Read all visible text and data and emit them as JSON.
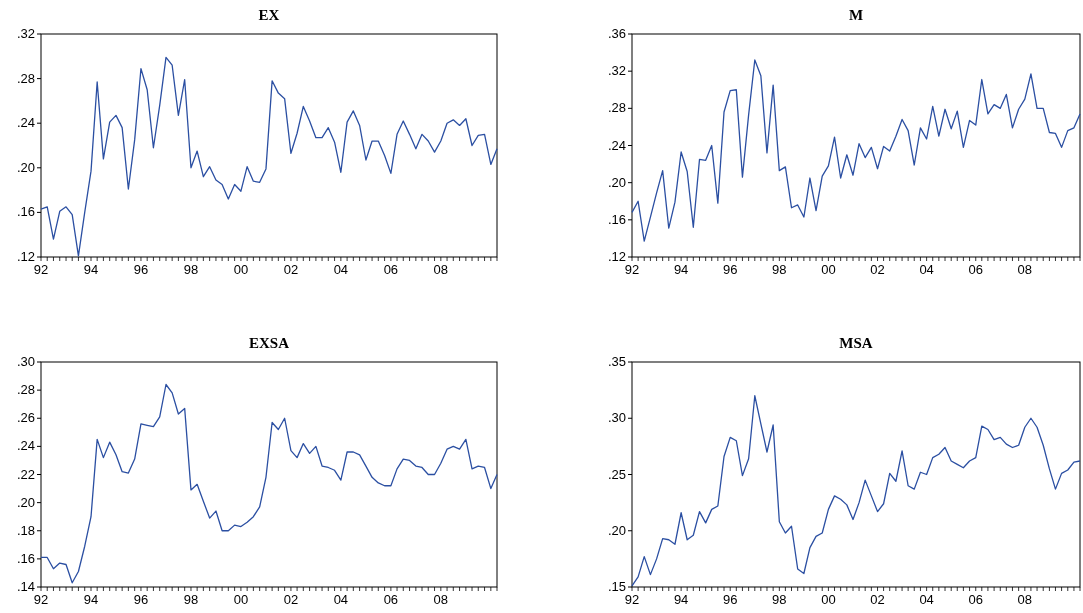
{
  "chart_data": [
    {
      "type": "line",
      "title": "EX",
      "color": "#2b4fa2",
      "xlim": [
        "1992-01",
        "2010-04"
      ],
      "ylim": [
        0.12,
        0.32
      ],
      "yticks": [
        {
          "value": 0.12,
          "label": ".12"
        },
        {
          "value": 0.16,
          "label": ".16"
        },
        {
          "value": 0.2,
          "label": ".20"
        },
        {
          "value": 0.24,
          "label": ".24"
        },
        {
          "value": 0.28,
          "label": ".28"
        },
        {
          "value": 0.32,
          "label": ".32"
        }
      ],
      "xticks": [
        {
          "value": "1992",
          "label": "92"
        },
        {
          "value": "1994",
          "label": "94"
        },
        {
          "value": "1996",
          "label": "96"
        },
        {
          "value": "1998",
          "label": "98"
        },
        {
          "value": "2000",
          "label": "00"
        },
        {
          "value": "2002",
          "label": "02"
        },
        {
          "value": "2004",
          "label": "04"
        },
        {
          "value": "2006",
          "label": "06"
        },
        {
          "value": "2008",
          "label": "08"
        }
      ],
      "x": [
        "1992-01",
        "1992-04",
        "1992-07",
        "1992-10",
        "1993-01",
        "1993-04",
        "1993-07",
        "1993-10",
        "1994-01",
        "1994-04",
        "1994-07",
        "1994-10",
        "1995-01",
        "1995-04",
        "1995-07",
        "1995-10",
        "1996-01",
        "1996-04",
        "1996-07",
        "1996-10",
        "1997-01",
        "1997-04",
        "1997-07",
        "1997-10",
        "1998-01",
        "1998-04",
        "1998-07",
        "1998-10",
        "1999-01",
        "1999-04",
        "1999-07",
        "1999-10",
        "2000-01",
        "2000-04",
        "2000-07",
        "2000-10",
        "2001-01",
        "2001-04",
        "2001-07",
        "2001-10",
        "2002-01",
        "2002-04",
        "2002-07",
        "2002-10",
        "2003-01",
        "2003-04",
        "2003-07",
        "2003-10",
        "2004-01",
        "2004-04",
        "2004-07",
        "2004-10",
        "2005-01",
        "2005-04",
        "2005-07",
        "2005-10",
        "2006-01",
        "2006-04",
        "2006-07",
        "2006-10",
        "2007-01",
        "2007-04",
        "2007-07",
        "2007-10",
        "2008-01",
        "2008-04",
        "2008-07",
        "2008-10",
        "2009-01",
        "2009-04",
        "2009-07",
        "2009-10",
        "2010-01",
        "2010-04"
      ],
      "values": [
        0.163,
        0.165,
        0.136,
        0.161,
        0.165,
        0.158,
        0.121,
        0.16,
        0.197,
        0.277,
        0.208,
        0.241,
        0.247,
        0.236,
        0.181,
        0.225,
        0.289,
        0.27,
        0.218,
        0.256,
        0.299,
        0.292,
        0.247,
        0.279,
        0.2,
        0.215,
        0.192,
        0.201,
        0.189,
        0.185,
        0.172,
        0.185,
        0.179,
        0.201,
        0.188,
        0.187,
        0.199,
        0.278,
        0.267,
        0.262,
        0.213,
        0.231,
        0.255,
        0.242,
        0.227,
        0.227,
        0.236,
        0.223,
        0.196,
        0.241,
        0.251,
        0.238,
        0.207,
        0.224,
        0.224,
        0.211,
        0.195,
        0.23,
        0.242,
        0.23,
        0.217,
        0.23,
        0.224,
        0.214,
        0.224,
        0.24,
        0.243,
        0.238,
        0.244,
        0.22,
        0.229,
        0.23,
        0.203,
        0.217
      ]
    },
    {
      "type": "line",
      "title": "M",
      "color": "#2b4fa2",
      "xlim": [
        "1992-01",
        "2010-04"
      ],
      "ylim": [
        0.12,
        0.36
      ],
      "yticks": [
        {
          "value": 0.12,
          "label": ".12"
        },
        {
          "value": 0.16,
          "label": ".16"
        },
        {
          "value": 0.2,
          "label": ".20"
        },
        {
          "value": 0.24,
          "label": ".24"
        },
        {
          "value": 0.28,
          "label": ".28"
        },
        {
          "value": 0.32,
          "label": ".32"
        },
        {
          "value": 0.36,
          "label": ".36"
        }
      ],
      "xticks": [
        {
          "value": "1992",
          "label": "92"
        },
        {
          "value": "1994",
          "label": "94"
        },
        {
          "value": "1996",
          "label": "96"
        },
        {
          "value": "1998",
          "label": "98"
        },
        {
          "value": "2000",
          "label": "00"
        },
        {
          "value": "2002",
          "label": "02"
        },
        {
          "value": "2004",
          "label": "04"
        },
        {
          "value": "2006",
          "label": "06"
        },
        {
          "value": "2008",
          "label": "08"
        }
      ],
      "x": [
        "1992-01",
        "1992-04",
        "1992-07",
        "1992-10",
        "1993-01",
        "1993-04",
        "1993-07",
        "1993-10",
        "1994-01",
        "1994-04",
        "1994-07",
        "1994-10",
        "1995-01",
        "1995-04",
        "1995-07",
        "1995-10",
        "1996-01",
        "1996-04",
        "1996-07",
        "1996-10",
        "1997-01",
        "1997-04",
        "1997-07",
        "1997-10",
        "1998-01",
        "1998-04",
        "1998-07",
        "1998-10",
        "1999-01",
        "1999-04",
        "1999-07",
        "1999-10",
        "2000-01",
        "2000-04",
        "2000-07",
        "2000-10",
        "2001-01",
        "2001-04",
        "2001-07",
        "2001-10",
        "2002-01",
        "2002-04",
        "2002-07",
        "2002-10",
        "2003-01",
        "2003-04",
        "2003-07",
        "2003-10",
        "2004-01",
        "2004-04",
        "2004-07",
        "2004-10",
        "2005-01",
        "2005-04",
        "2005-07",
        "2005-10",
        "2006-01",
        "2006-04",
        "2006-07",
        "2006-10",
        "2007-01",
        "2007-04",
        "2007-07",
        "2007-10",
        "2008-01",
        "2008-04",
        "2008-07",
        "2008-10",
        "2009-01",
        "2009-04",
        "2009-07",
        "2009-10",
        "2010-01",
        "2010-04"
      ],
      "values": [
        0.168,
        0.18,
        0.137,
        0.163,
        0.189,
        0.213,
        0.151,
        0.179,
        0.233,
        0.212,
        0.152,
        0.225,
        0.224,
        0.24,
        0.178,
        0.276,
        0.299,
        0.3,
        0.206,
        0.273,
        0.332,
        0.315,
        0.232,
        0.305,
        0.213,
        0.217,
        0.173,
        0.176,
        0.163,
        0.205,
        0.17,
        0.207,
        0.218,
        0.249,
        0.205,
        0.23,
        0.208,
        0.242,
        0.227,
        0.238,
        0.215,
        0.239,
        0.234,
        0.25,
        0.268,
        0.256,
        0.219,
        0.259,
        0.247,
        0.282,
        0.25,
        0.279,
        0.258,
        0.277,
        0.238,
        0.267,
        0.262,
        0.311,
        0.274,
        0.284,
        0.28,
        0.295,
        0.259,
        0.279,
        0.29,
        0.317,
        0.28,
        0.28,
        0.254,
        0.253,
        0.238,
        0.256,
        0.259,
        0.274
      ]
    },
    {
      "type": "line",
      "title": "EXSA",
      "color": "#2b4fa2",
      "xlim": [
        "1992-01",
        "2010-04"
      ],
      "ylim": [
        0.14,
        0.3
      ],
      "yticks": [
        {
          "value": 0.14,
          "label": ".14"
        },
        {
          "value": 0.16,
          "label": ".16"
        },
        {
          "value": 0.18,
          "label": ".18"
        },
        {
          "value": 0.2,
          "label": ".20"
        },
        {
          "value": 0.22,
          "label": ".22"
        },
        {
          "value": 0.24,
          "label": ".24"
        },
        {
          "value": 0.26,
          "label": ".26"
        },
        {
          "value": 0.28,
          "label": ".28"
        },
        {
          "value": 0.3,
          "label": ".30"
        }
      ],
      "xticks": [
        {
          "value": "1992",
          "label": "92"
        },
        {
          "value": "1994",
          "label": "94"
        },
        {
          "value": "1996",
          "label": "96"
        },
        {
          "value": "1998",
          "label": "98"
        },
        {
          "value": "2000",
          "label": "00"
        },
        {
          "value": "2002",
          "label": "02"
        },
        {
          "value": "2004",
          "label": "04"
        },
        {
          "value": "2006",
          "label": "06"
        },
        {
          "value": "2008",
          "label": "08"
        }
      ],
      "x": [
        "1992-01",
        "1992-04",
        "1992-07",
        "1992-10",
        "1993-01",
        "1993-04",
        "1993-07",
        "1993-10",
        "1994-01",
        "1994-04",
        "1994-07",
        "1994-10",
        "1995-01",
        "1995-04",
        "1995-07",
        "1995-10",
        "1996-01",
        "1996-04",
        "1996-07",
        "1996-10",
        "1997-01",
        "1997-04",
        "1997-07",
        "1997-10",
        "1998-01",
        "1998-04",
        "1998-07",
        "1998-10",
        "1999-01",
        "1999-04",
        "1999-07",
        "1999-10",
        "2000-01",
        "2000-04",
        "2000-07",
        "2000-10",
        "2001-01",
        "2001-04",
        "2001-07",
        "2001-10",
        "2002-01",
        "2002-04",
        "2002-07",
        "2002-10",
        "2003-01",
        "2003-04",
        "2003-07",
        "2003-10",
        "2004-01",
        "2004-04",
        "2004-07",
        "2004-10",
        "2005-01",
        "2005-04",
        "2005-07",
        "2005-10",
        "2006-01",
        "2006-04",
        "2006-07",
        "2006-10",
        "2007-01",
        "2007-04",
        "2007-07",
        "2007-10",
        "2008-01",
        "2008-04",
        "2008-07",
        "2008-10",
        "2009-01",
        "2009-04",
        "2009-07",
        "2009-10",
        "2010-01",
        "2010-04"
      ],
      "values": [
        0.161,
        0.161,
        0.153,
        0.157,
        0.156,
        0.143,
        0.151,
        0.169,
        0.19,
        0.245,
        0.232,
        0.243,
        0.234,
        0.222,
        0.221,
        0.231,
        0.256,
        0.255,
        0.254,
        0.261,
        0.284,
        0.278,
        0.263,
        0.267,
        0.209,
        0.213,
        0.201,
        0.189,
        0.194,
        0.18,
        0.18,
        0.184,
        0.183,
        0.186,
        0.19,
        0.197,
        0.218,
        0.257,
        0.252,
        0.26,
        0.237,
        0.232,
        0.242,
        0.235,
        0.24,
        0.226,
        0.225,
        0.223,
        0.216,
        0.236,
        0.236,
        0.234,
        0.226,
        0.218,
        0.214,
        0.212,
        0.212,
        0.224,
        0.231,
        0.23,
        0.226,
        0.225,
        0.22,
        0.22,
        0.228,
        0.238,
        0.24,
        0.238,
        0.245,
        0.224,
        0.226,
        0.225,
        0.21,
        0.22
      ]
    },
    {
      "type": "line",
      "title": "MSA",
      "color": "#2b4fa2",
      "xlim": [
        "1992-01",
        "2010-04"
      ],
      "ylim": [
        0.15,
        0.35
      ],
      "yticks": [
        {
          "value": 0.15,
          "label": ".15"
        },
        {
          "value": 0.2,
          "label": ".20"
        },
        {
          "value": 0.25,
          "label": ".25"
        },
        {
          "value": 0.3,
          "label": ".30"
        },
        {
          "value": 0.35,
          "label": ".35"
        }
      ],
      "xticks": [
        {
          "value": "1992",
          "label": "92"
        },
        {
          "value": "1994",
          "label": "94"
        },
        {
          "value": "1996",
          "label": "96"
        },
        {
          "value": "1998",
          "label": "98"
        },
        {
          "value": "2000",
          "label": "00"
        },
        {
          "value": "2002",
          "label": "02"
        },
        {
          "value": "2004",
          "label": "04"
        },
        {
          "value": "2006",
          "label": "06"
        },
        {
          "value": "2008",
          "label": "08"
        }
      ],
      "x": [
        "1992-01",
        "1992-04",
        "1992-07",
        "1992-10",
        "1993-01",
        "1993-04",
        "1993-07",
        "1993-10",
        "1994-01",
        "1994-04",
        "1994-07",
        "1994-10",
        "1995-01",
        "1995-04",
        "1995-07",
        "1995-10",
        "1996-01",
        "1996-04",
        "1996-07",
        "1996-10",
        "1997-01",
        "1997-04",
        "1997-07",
        "1997-10",
        "1998-01",
        "1998-04",
        "1998-07",
        "1998-10",
        "1999-01",
        "1999-04",
        "1999-07",
        "1999-10",
        "2000-01",
        "2000-04",
        "2000-07",
        "2000-10",
        "2001-01",
        "2001-04",
        "2001-07",
        "2001-10",
        "2002-01",
        "2002-04",
        "2002-07",
        "2002-10",
        "2003-01",
        "2003-04",
        "2003-07",
        "2003-10",
        "2004-01",
        "2004-04",
        "2004-07",
        "2004-10",
        "2005-01",
        "2005-04",
        "2005-07",
        "2005-10",
        "2006-01",
        "2006-04",
        "2006-07",
        "2006-10",
        "2007-01",
        "2007-04",
        "2007-07",
        "2007-10",
        "2008-01",
        "2008-04",
        "2008-07",
        "2008-10",
        "2009-01",
        "2009-04",
        "2009-07",
        "2009-10",
        "2010-01",
        "2010-04"
      ],
      "values": [
        0.151,
        0.159,
        0.177,
        0.161,
        0.175,
        0.193,
        0.192,
        0.188,
        0.216,
        0.192,
        0.196,
        0.217,
        0.207,
        0.219,
        0.222,
        0.266,
        0.283,
        0.28,
        0.249,
        0.264,
        0.32,
        0.295,
        0.27,
        0.294,
        0.208,
        0.198,
        0.204,
        0.166,
        0.162,
        0.185,
        0.195,
        0.198,
        0.219,
        0.231,
        0.228,
        0.223,
        0.21,
        0.225,
        0.245,
        0.231,
        0.217,
        0.224,
        0.251,
        0.244,
        0.271,
        0.24,
        0.237,
        0.252,
        0.25,
        0.265,
        0.268,
        0.274,
        0.262,
        0.259,
        0.256,
        0.262,
        0.265,
        0.293,
        0.29,
        0.281,
        0.283,
        0.277,
        0.274,
        0.276,
        0.292,
        0.3,
        0.292,
        0.276,
        0.255,
        0.237,
        0.251,
        0.254,
        0.261,
        0.262
      ]
    }
  ]
}
